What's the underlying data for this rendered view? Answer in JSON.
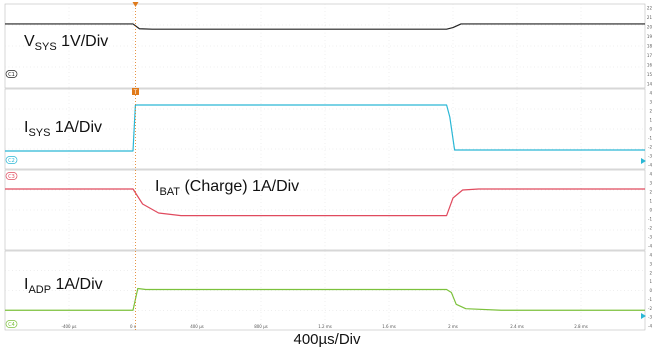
{
  "chart_data": {
    "type": "line",
    "title": "",
    "xlabel": "400µs/Div",
    "x_ticks": [
      "-400 µs",
      "0 s",
      "400 µs",
      "800 µs",
      "1.2 ms",
      "1.6 ms",
      "2 ms",
      "2.4 ms",
      "2.8 ms"
    ],
    "xlim": [
      -800,
      3200
    ],
    "x_unit": "µs",
    "grid": true,
    "series": [
      {
        "channel": "C1",
        "label_main": "V",
        "label_sub": "SYS",
        "label_rest": " 1V/Div",
        "color": "#222222",
        "x": [
          -800,
          0,
          40,
          120,
          1960,
          2000,
          2050,
          3200
        ],
        "y": [
          3.05,
          3.05,
          2.82,
          2.8,
          2.8,
          2.88,
          3.05,
          3.05
        ],
        "right_ticks": [
          "22",
          "21",
          "20",
          "19",
          "18",
          "17",
          "16",
          "15",
          "14"
        ]
      },
      {
        "channel": "C2",
        "label_main": "I",
        "label_sub": "SYS",
        "label_rest": " 1A/Div",
        "color": "#2ab7d5",
        "x": [
          -800,
          0,
          15,
          1960,
          1980,
          2010,
          3200
        ],
        "y": [
          0.9,
          0.9,
          3.2,
          3.2,
          2.6,
          0.95,
          0.95
        ],
        "right_ticks": [
          "4",
          "3",
          "2",
          "1",
          "0",
          "-1",
          "-2",
          "-3",
          "-4"
        ]
      },
      {
        "channel": "C3",
        "label_main": "I",
        "label_sub": "BAT",
        "label_rest": " (Charge) 1A/Div",
        "color": "#e04a5e",
        "x": [
          -800,
          0,
          60,
          160,
          300,
          1960,
          2000,
          2060,
          2160,
          3200
        ],
        "y": [
          3.05,
          3.05,
          2.3,
          1.85,
          1.72,
          1.72,
          2.6,
          3.0,
          3.05,
          3.05
        ],
        "right_ticks": [
          "4",
          "3",
          "2",
          "1",
          "0",
          "-1",
          "-2",
          "-3",
          "-4"
        ]
      },
      {
        "channel": "C4",
        "label_main": "I",
        "label_sub": "ADP",
        "label_rest": " 1A/Div",
        "color": "#7cc13c",
        "x": [
          -800,
          0,
          30,
          80,
          1960,
          1990,
          2020,
          2080,
          2300,
          3200
        ],
        "y": [
          1.0,
          1.0,
          2.1,
          2.05,
          2.05,
          1.9,
          1.3,
          1.08,
          1.0,
          1.0
        ],
        "right_ticks": [
          "4",
          "3",
          "2",
          "1",
          "0",
          "-1",
          "-2",
          "-3",
          "-4"
        ]
      }
    ]
  }
}
